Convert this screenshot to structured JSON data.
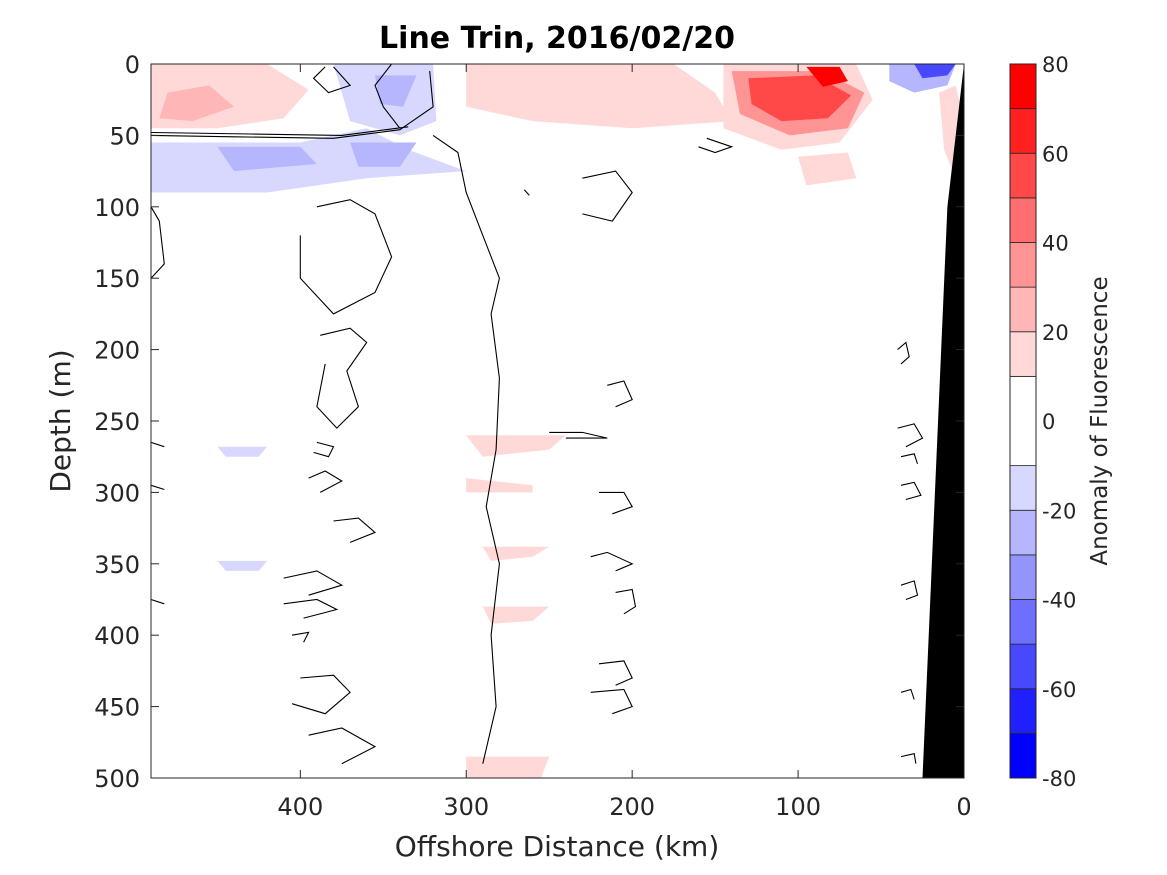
{
  "chart_data": {
    "type": "heatmap",
    "title": "Line Trin, 2016/02/20",
    "xlabel": "Offshore Distance (km)",
    "ylabel": "Depth (m)",
    "xlim": [
      490,
      0
    ],
    "ylim": [
      0,
      500
    ],
    "x_reversed": true,
    "y_reversed": true,
    "xticks": [
      400,
      300,
      200,
      100,
      0
    ],
    "yticks": [
      0,
      50,
      100,
      150,
      200,
      250,
      300,
      350,
      400,
      450,
      500
    ],
    "colorbar": {
      "label": "Anomaly of Fluorescence",
      "range": [
        -80,
        80
      ],
      "ticks": [
        80,
        60,
        40,
        20,
        0,
        -20,
        -40,
        -60,
        -80
      ],
      "levels": [
        {
          "from": -80,
          "to": -70,
          "color": "#0000ff"
        },
        {
          "from": -70,
          "to": -60,
          "color": "#2020ff"
        },
        {
          "from": -60,
          "to": -50,
          "color": "#4848ff"
        },
        {
          "from": -50,
          "to": -40,
          "color": "#6e6eff"
        },
        {
          "from": -40,
          "to": -30,
          "color": "#9494ff"
        },
        {
          "from": -30,
          "to": -20,
          "color": "#b6b6ff"
        },
        {
          "from": -20,
          "to": -10,
          "color": "#d8d8ff"
        },
        {
          "from": -10,
          "to": 10,
          "color": "#ffffff"
        },
        {
          "from": 10,
          "to": 20,
          "color": "#ffd8d8"
        },
        {
          "from": 20,
          "to": 30,
          "color": "#ffb6b6"
        },
        {
          "from": 30,
          "to": 40,
          "color": "#ff9494"
        },
        {
          "from": 40,
          "to": 50,
          "color": "#ff6e6e"
        },
        {
          "from": 50,
          "to": 60,
          "color": "#ff4848"
        },
        {
          "from": 60,
          "to": 70,
          "color": "#ff2020"
        },
        {
          "from": 70,
          "to": 80,
          "color": "#ff0000"
        }
      ]
    },
    "filled_patches": [
      {
        "value": 15,
        "points": [
          [
            490,
            0
          ],
          [
            420,
            0
          ],
          [
            395,
            18
          ],
          [
            410,
            38
          ],
          [
            450,
            45
          ],
          [
            490,
            45
          ]
        ]
      },
      {
        "value": 25,
        "points": [
          [
            480,
            20
          ],
          [
            455,
            15
          ],
          [
            440,
            30
          ],
          [
            465,
            40
          ],
          [
            485,
            38
          ]
        ]
      },
      {
        "value": 15,
        "points": [
          [
            300,
            0
          ],
          [
            175,
            0
          ],
          [
            150,
            20
          ],
          [
            140,
            40
          ],
          [
            200,
            45
          ],
          [
            260,
            40
          ],
          [
            300,
            30
          ]
        ]
      },
      {
        "value": 15,
        "points": [
          [
            145,
            0
          ],
          [
            65,
            0
          ],
          [
            55,
            25
          ],
          [
            75,
            55
          ],
          [
            110,
            60
          ],
          [
            145,
            45
          ]
        ]
      },
      {
        "value": 30,
        "points": [
          [
            140,
            5
          ],
          [
            85,
            5
          ],
          [
            60,
            20
          ],
          [
            70,
            45
          ],
          [
            105,
            50
          ],
          [
            135,
            35
          ]
        ]
      },
      {
        "value": 50,
        "points": [
          [
            130,
            10
          ],
          [
            90,
            8
          ],
          [
            68,
            22
          ],
          [
            82,
            38
          ],
          [
            110,
            40
          ],
          [
            128,
            28
          ]
        ]
      },
      {
        "value": 70,
        "points": [
          [
            95,
            2
          ],
          [
            75,
            2
          ],
          [
            70,
            12
          ],
          [
            85,
            16
          ]
        ]
      },
      {
        "value": 15,
        "points": [
          [
            100,
            65
          ],
          [
            70,
            62
          ],
          [
            65,
            80
          ],
          [
            95,
            85
          ]
        ]
      },
      {
        "value": 15,
        "points": [
          [
            15,
            20
          ],
          [
            5,
            15
          ],
          [
            0,
            40
          ],
          [
            5,
            80
          ],
          [
            12,
            60
          ]
        ]
      },
      {
        "value": -15,
        "points": [
          [
            490,
            55
          ],
          [
            400,
            55
          ],
          [
            360,
            45
          ],
          [
            335,
            60
          ],
          [
            300,
            75
          ],
          [
            360,
            80
          ],
          [
            420,
            90
          ],
          [
            490,
            90
          ]
        ]
      },
      {
        "value": -25,
        "points": [
          [
            450,
            58
          ],
          [
            400,
            58
          ],
          [
            390,
            70
          ],
          [
            440,
            75
          ]
        ]
      },
      {
        "value": -25,
        "points": [
          [
            370,
            55
          ],
          [
            330,
            55
          ],
          [
            340,
            72
          ],
          [
            365,
            72
          ]
        ]
      },
      {
        "value": -15,
        "points": [
          [
            380,
            0
          ],
          [
            320,
            0
          ],
          [
            318,
            40
          ],
          [
            340,
            50
          ],
          [
            370,
            40
          ]
        ]
      },
      {
        "value": -25,
        "points": [
          [
            355,
            8
          ],
          [
            330,
            8
          ],
          [
            338,
            30
          ],
          [
            352,
            28
          ]
        ]
      },
      {
        "value": -30,
        "points": [
          [
            45,
            0
          ],
          [
            5,
            0
          ],
          [
            10,
            15
          ],
          [
            30,
            20
          ],
          [
            45,
            12
          ]
        ]
      },
      {
        "value": -60,
        "points": [
          [
            30,
            0
          ],
          [
            5,
            0
          ],
          [
            10,
            8
          ],
          [
            25,
            10
          ]
        ]
      },
      {
        "value": 15,
        "points": [
          [
            300,
            300
          ],
          [
            260,
            300
          ],
          [
            260,
            295
          ],
          [
            300,
            290
          ]
        ]
      },
      {
        "value": 15,
        "points": [
          [
            300,
            260
          ],
          [
            240,
            260
          ],
          [
            250,
            270
          ],
          [
            290,
            275
          ]
        ]
      },
      {
        "value": 15,
        "points": [
          [
            290,
            338
          ],
          [
            250,
            338
          ],
          [
            260,
            345
          ],
          [
            285,
            348
          ]
        ]
      },
      {
        "value": 15,
        "points": [
          [
            290,
            380
          ],
          [
            250,
            380
          ],
          [
            260,
            390
          ],
          [
            285,
            392
          ]
        ]
      },
      {
        "value": 15,
        "points": [
          [
            300,
            485
          ],
          [
            250,
            485
          ],
          [
            255,
            500
          ],
          [
            300,
            500
          ]
        ]
      },
      {
        "value": -15,
        "points": [
          [
            450,
            268
          ],
          [
            420,
            268
          ],
          [
            425,
            275
          ],
          [
            445,
            275
          ]
        ]
      },
      {
        "value": -15,
        "points": [
          [
            450,
            348
          ],
          [
            420,
            348
          ],
          [
            425,
            355
          ],
          [
            445,
            355
          ]
        ]
      }
    ],
    "contour_lines": [
      [
        [
          490,
          50
        ],
        [
          440,
          51
        ],
        [
          380,
          52
        ],
        [
          340,
          46
        ],
        [
          320,
          30
        ],
        [
          322,
          5
        ]
      ],
      [
        [
          380,
          2
        ],
        [
          370,
          15
        ],
        [
          383,
          20
        ],
        [
          392,
          10
        ],
        [
          385,
          2
        ]
      ],
      [
        [
          345,
          0
        ],
        [
          355,
          15
        ],
        [
          350,
          30
        ],
        [
          340,
          45
        ]
      ],
      [
        [
          490,
          48
        ],
        [
          430,
          49
        ],
        [
          375,
          50
        ],
        [
          335,
          44
        ]
      ],
      [
        [
          320,
          50
        ],
        [
          305,
          62
        ],
        [
          300,
          90
        ],
        [
          290,
          120
        ],
        [
          280,
          150
        ],
        [
          285,
          175
        ],
        [
          280,
          220
        ],
        [
          282,
          270
        ],
        [
          288,
          310
        ],
        [
          280,
          350
        ],
        [
          285,
          400
        ],
        [
          282,
          450
        ],
        [
          290,
          490
        ]
      ],
      [
        [
          390,
          100
        ],
        [
          370,
          95
        ],
        [
          355,
          105
        ],
        [
          345,
          135
        ],
        [
          355,
          160
        ],
        [
          380,
          175
        ],
        [
          400,
          150
        ],
        [
          400,
          120
        ]
      ],
      [
        [
          388,
          190
        ],
        [
          370,
          185
        ],
        [
          360,
          195
        ],
        [
          372,
          215
        ],
        [
          365,
          240
        ],
        [
          378,
          255
        ],
        [
          390,
          240
        ],
        [
          385,
          210
        ]
      ],
      [
        [
          395,
          290
        ],
        [
          385,
          285
        ],
        [
          375,
          292
        ],
        [
          388,
          300
        ]
      ],
      [
        [
          390,
          265
        ],
        [
          380,
          268
        ],
        [
          383,
          275
        ],
        [
          392,
          272
        ]
      ],
      [
        [
          380,
          320
        ],
        [
          365,
          318
        ],
        [
          355,
          328
        ],
        [
          370,
          335
        ]
      ],
      [
        [
          410,
          360
        ],
        [
          390,
          355
        ],
        [
          375,
          365
        ],
        [
          395,
          372
        ]
      ],
      [
        [
          410,
          378
        ],
        [
          390,
          375
        ],
        [
          378,
          382
        ],
        [
          398,
          388
        ]
      ],
      [
        [
          405,
          400
        ],
        [
          395,
          398
        ],
        [
          398,
          405
        ]
      ],
      [
        [
          400,
          430
        ],
        [
          380,
          428
        ],
        [
          370,
          440
        ],
        [
          385,
          455
        ],
        [
          405,
          448
        ]
      ],
      [
        [
          395,
          470
        ],
        [
          375,
          465
        ],
        [
          355,
          478
        ],
        [
          375,
          490
        ]
      ],
      [
        [
          230,
          80
        ],
        [
          210,
          75
        ],
        [
          200,
          90
        ],
        [
          212,
          110
        ],
        [
          230,
          105
        ]
      ],
      [
        [
          250,
          258
        ],
        [
          230,
          258
        ],
        [
          215,
          262
        ],
        [
          240,
          262
        ]
      ],
      [
        [
          215,
          225
        ],
        [
          205,
          222
        ],
        [
          200,
          235
        ],
        [
          210,
          240
        ]
      ],
      [
        [
          220,
          300
        ],
        [
          205,
          300
        ],
        [
          200,
          310
        ],
        [
          212,
          315
        ]
      ],
      [
        [
          210,
          370
        ],
        [
          200,
          368
        ],
        [
          198,
          380
        ],
        [
          205,
          385
        ]
      ],
      [
        [
          225,
          345
        ],
        [
          215,
          342
        ],
        [
          200,
          350
        ],
        [
          210,
          355
        ]
      ],
      [
        [
          220,
          420
        ],
        [
          205,
          418
        ],
        [
          200,
          430
        ],
        [
          210,
          435
        ]
      ],
      [
        [
          225,
          440
        ],
        [
          205,
          438
        ],
        [
          200,
          450
        ],
        [
          212,
          455
        ]
      ],
      [
        [
          160,
          58
        ],
        [
          150,
          62
        ],
        [
          140,
          58
        ],
        [
          155,
          52
        ]
      ],
      [
        [
          265,
          88
        ],
        [
          262,
          92
        ]
      ],
      [
        [
          40,
          200
        ],
        [
          35,
          195
        ],
        [
          33,
          205
        ],
        [
          38,
          210
        ]
      ],
      [
        [
          40,
          255
        ],
        [
          30,
          252
        ],
        [
          25,
          262
        ],
        [
          35,
          268
        ]
      ],
      [
        [
          38,
          275
        ],
        [
          30,
          273
        ],
        [
          28,
          280
        ]
      ],
      [
        [
          38,
          295
        ],
        [
          30,
          293
        ],
        [
          26,
          302
        ],
        [
          35,
          305
        ]
      ],
      [
        [
          38,
          365
        ],
        [
          30,
          362
        ],
        [
          28,
          372
        ],
        [
          35,
          375
        ]
      ],
      [
        [
          38,
          440
        ],
        [
          32,
          438
        ],
        [
          30,
          445
        ]
      ],
      [
        [
          38,
          485
        ],
        [
          30,
          483
        ],
        [
          29,
          490
        ]
      ],
      [
        [
          490,
          265
        ],
        [
          482,
          268
        ]
      ],
      [
        [
          490,
          295
        ],
        [
          482,
          298
        ]
      ],
      [
        [
          490,
          375
        ],
        [
          482,
          378
        ]
      ],
      [
        [
          490,
          100
        ],
        [
          485,
          110
        ],
        [
          482,
          140
        ],
        [
          490,
          150
        ]
      ]
    ],
    "bathymetry_polygon": [
      [
        0,
        0
      ],
      [
        0,
        500
      ],
      [
        25,
        500
      ],
      [
        10,
        100
      ],
      [
        0,
        0
      ]
    ]
  }
}
